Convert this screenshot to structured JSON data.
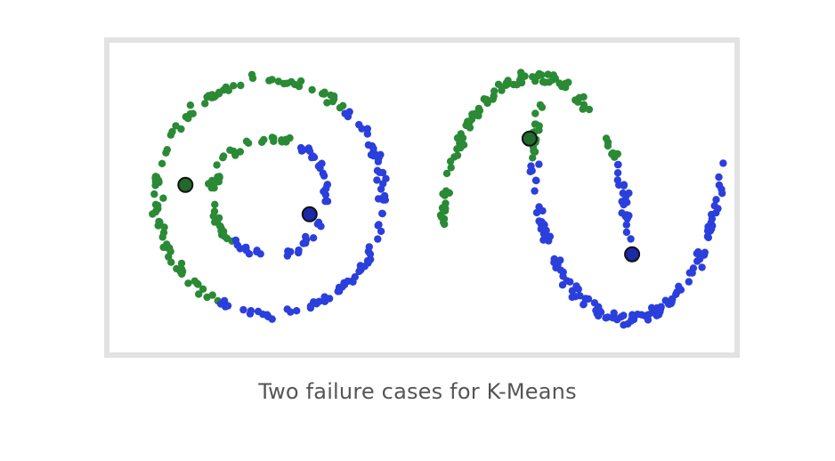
{
  "caption": "Two failure cases for K-Means",
  "colors": {
    "cluster_green": "#2a8a35",
    "cluster_blue": "#2a3fdc",
    "centroid_green": "#1f6a2c",
    "centroid_blue": "#1a2aa8",
    "centroid_stroke": "#111111",
    "frame": "#e2e2e2"
  },
  "chart_data": [
    {
      "type": "scatter",
      "title": "",
      "xlabel": "",
      "ylabel": "",
      "grid": false,
      "axes_visible": false,
      "shape": "concentric circles",
      "x_range": [
        -1.25,
        1.25
      ],
      "y_range": [
        -1.25,
        1.25
      ],
      "series": [
        {
          "color": "cluster_green",
          "rings": [
            {
              "radius": 1.0,
              "angle_start_deg": 50,
              "angle_end_deg": 245,
              "count": 95
            },
            {
              "radius": 0.5,
              "angle_start_deg": 70,
              "angle_end_deg": 230,
              "count": 45
            }
          ]
        },
        {
          "color": "cluster_blue",
          "rings": [
            {
              "radius": 1.0,
              "angle_start_deg": -115,
              "angle_end_deg": 50,
              "count": 85
            },
            {
              "radius": 0.5,
              "angle_start_deg": -130,
              "angle_end_deg": 70,
              "count": 45
            }
          ]
        }
      ],
      "centroids": [
        {
          "color": "centroid_green",
          "x": -0.74,
          "y": 0.1
        },
        {
          "color": "centroid_blue",
          "x": 0.35,
          "y": -0.15
        }
      ]
    },
    {
      "type": "scatter",
      "title": "",
      "xlabel": "",
      "ylabel": "",
      "grid": false,
      "axes_visible": false,
      "shape": "two moons",
      "x_range": [
        -1.1,
        2.1
      ],
      "y_range": [
        -0.65,
        1.15
      ],
      "series": [
        {
          "color": "cluster_green",
          "arcs": [
            {
              "center": [
                0,
                0
              ],
              "radius": 1.0,
              "angle_start_deg": 28,
              "angle_end_deg": 180,
              "count": 100
            },
            {
              "center": [
                1,
                0.5
              ],
              "radius": 1.0,
              "angle_start_deg": 160,
              "angle_end_deg": 180,
              "count": 18
            }
          ]
        },
        {
          "color": "cluster_blue",
          "arcs": [
            {
              "center": [
                0,
                0
              ],
              "radius": 1.0,
              "angle_start_deg": 0,
              "angle_end_deg": 28,
              "count": 22
            },
            {
              "center": [
                1,
                0.5
              ],
              "radius": 1.0,
              "angle_start_deg": 180,
              "angle_end_deg": 360,
              "count": 130
            }
          ]
        }
      ],
      "centroids": [
        {
          "color": "centroid_green",
          "x": -0.05,
          "y": 0.62
        },
        {
          "color": "centroid_blue",
          "x": 1.05,
          "y": -0.1
        }
      ]
    }
  ]
}
